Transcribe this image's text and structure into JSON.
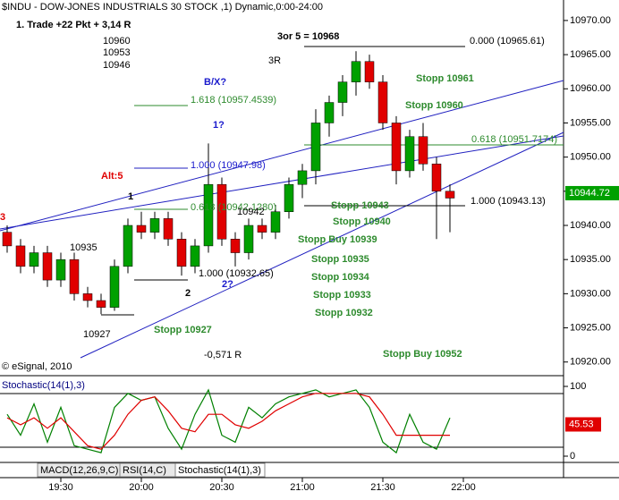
{
  "chart_data": {
    "type": "candlestick",
    "title": "$INDU - DOW-JONES INDUSTRIALS 30 STOCK ,1) Dynamic,0:00-24:00",
    "x": [
      "19:10",
      "19:15",
      "19:20",
      "19:25",
      "19:30",
      "19:35",
      "19:40",
      "19:45",
      "19:50",
      "19:55",
      "20:00",
      "20:05",
      "20:10",
      "20:15",
      "20:20",
      "20:25",
      "20:30",
      "20:35",
      "20:40",
      "20:45",
      "20:50",
      "20:55",
      "21:00",
      "21:05",
      "21:10",
      "21:15",
      "21:20",
      "21:25",
      "21:30",
      "21:35",
      "21:40",
      "21:45",
      "21:50",
      "21:55"
    ],
    "open": [
      10939,
      10937,
      10934,
      10936,
      10932,
      10935,
      10930,
      10929,
      10928,
      10934,
      10940,
      10939,
      10941,
      10938,
      10934,
      10937,
      10946,
      10938,
      10936,
      10940,
      10939,
      10942,
      10946,
      10948,
      10955,
      10958,
      10961,
      10964,
      10961,
      10955,
      10948,
      10953,
      10949,
      10945
    ],
    "high": [
      10940,
      10938,
      10937,
      10937,
      10936,
      10936,
      10931,
      10930,
      10935,
      10941,
      10942,
      10942,
      10942,
      10939,
      10938,
      10952,
      10947,
      10939,
      10941,
      10941,
      10943,
      10947,
      10949,
      10957,
      10959,
      10962,
      10965.5,
      10965,
      10962,
      10956,
      10954,
      10955,
      10950,
      10946
    ],
    "low": [
      10936,
      10933,
      10933,
      10931,
      10931,
      10929,
      10928,
      10927,
      10927.5,
      10933,
      10938,
      10938,
      10937,
      10932.65,
      10933,
      10936,
      10937,
      10934,
      10935,
      10938,
      10938,
      10941,
      10944,
      10946,
      10953,
      10956,
      10959,
      10960,
      10954,
      10946,
      10947,
      10948,
      10938,
      10939
    ],
    "close": [
      10937,
      10934,
      10936,
      10932,
      10935,
      10930,
      10929,
      10928,
      10934,
      10940,
      10939,
      10941,
      10938,
      10934,
      10937,
      10946,
      10938,
      10936,
      10940,
      10939,
      10942,
      10946,
      10948,
      10955,
      10958,
      10961,
      10964,
      10961,
      10955,
      10948,
      10953,
      10949,
      10945,
      10944
    ],
    "up_color": "#00a000",
    "down_color": "#e00000",
    "wick_color": "#000000",
    "ylim": [
      10918,
      10973
    ],
    "yticks": [
      {
        "value": 10920,
        "label": "10920.00"
      },
      {
        "value": 10925,
        "label": "10925.00"
      },
      {
        "value": 10930,
        "label": "10930.00"
      },
      {
        "value": 10935,
        "label": "10935.00"
      },
      {
        "value": 10940,
        "label": "10940.00"
      },
      {
        "value": 10945,
        "label": "10945.00"
      },
      {
        "value": 10950,
        "label": "10950.00"
      },
      {
        "value": 10955,
        "label": "10955.00"
      },
      {
        "value": 10960,
        "label": "10960.00"
      },
      {
        "value": 10965,
        "label": "10965.00"
      },
      {
        "value": 10970,
        "label": "10970.00"
      }
    ],
    "last_price": 10944.72,
    "xticks": [
      "19:30",
      "20:00",
      "20:30",
      "21:00",
      "21:30",
      "22:00"
    ],
    "copyright": "© eSignal, 2010",
    "annotations": [
      {
        "text": "1. Trade +22 Pkt + 3,14 R",
        "color": "#000000"
      },
      {
        "text": "10960",
        "color": "#000000"
      },
      {
        "text": "10953",
        "color": "#000000"
      },
      {
        "text": "10946",
        "color": "#000000"
      },
      {
        "text": "3or 5 = 10968",
        "color": "#000000"
      },
      {
        "text": "0.000 (10965.61)",
        "color": "#000000"
      },
      {
        "text": "3R",
        "color": "#000000"
      },
      {
        "text": "B/X?",
        "color": "#1a1acc"
      },
      {
        "text": "1.618 (10957.4539)",
        "color": "#2e8b2e"
      },
      {
        "text": "Stopp 10961",
        "color": "#2e8b2e"
      },
      {
        "text": "Stopp 10960",
        "color": "#2e8b2e"
      },
      {
        "text": "1?",
        "color": "#1a1acc"
      },
      {
        "text": "0.618 (10951.7174)",
        "color": "#2e8b2e"
      },
      {
        "text": "1.000 (10947.98)",
        "color": "#1a1acc"
      },
      {
        "text": "Alt:5",
        "color": "#e00000"
      },
      {
        "text": "1",
        "color": "#000000"
      },
      {
        "text": "0.618 (10942.1280)",
        "color": "#2e8b2e"
      },
      {
        "text": "Stopp 10943",
        "color": "#2e8b2e"
      },
      {
        "text": "1.000 (10943.13)",
        "color": "#000000"
      },
      {
        "text": "10942",
        "color": "#000000"
      },
      {
        "text": "3",
        "color": "#e00000"
      },
      {
        "text": "Stopp 10940",
        "color": "#2e8b2e"
      },
      {
        "text": "Stopp Buy 10939",
        "color": "#2e8b2e"
      },
      {
        "text": "10935",
        "color": "#000000"
      },
      {
        "text": "Stopp 10935",
        "color": "#2e8b2e"
      },
      {
        "text": "1.000 (10932.65)",
        "color": "#000000"
      },
      {
        "text": "Stopp 10934",
        "color": "#2e8b2e"
      },
      {
        "text": "2",
        "color": "#000000"
      },
      {
        "text": "2?",
        "color": "#1a1acc"
      },
      {
        "text": "Stopp 10933",
        "color": "#2e8b2e"
      },
      {
        "text": "Stopp 10932",
        "color": "#2e8b2e"
      },
      {
        "text": "10927",
        "color": "#000000"
      },
      {
        "text": "Stopp 10927",
        "color": "#2e8b2e"
      },
      {
        "text": "Stopp Buy 10952",
        "color": "#2e8b2e"
      },
      {
        "text": "-0,571 R",
        "color": "#000000"
      }
    ],
    "stochastic": {
      "title": "Stochastic(14(1),3)",
      "ylim": [
        0,
        100
      ],
      "yticks": [
        100,
        0
      ],
      "last_value": 45.53,
      "series": [
        {
          "color": "#008000",
          "values": [
            60,
            30,
            75,
            20,
            70,
            15,
            10,
            5,
            70,
            90,
            80,
            85,
            40,
            10,
            60,
            95,
            30,
            20,
            70,
            55,
            75,
            85,
            90,
            95,
            85,
            90,
            95,
            70,
            20,
            5,
            60,
            20,
            10,
            55
          ]
        },
        {
          "color": "#e00000",
          "values": [
            55,
            45,
            55,
            40,
            55,
            35,
            15,
            10,
            30,
            60,
            80,
            85,
            65,
            40,
            35,
            60,
            60,
            45,
            40,
            50,
            65,
            75,
            85,
            90,
            90,
            90,
            90,
            85,
            60,
            30,
            30,
            30,
            30,
            30
          ]
        }
      ]
    },
    "tabs": [
      "MACD(12,26,9,C)",
      "RSI(14,C)",
      "Stochastic(14(1),3)"
    ]
  }
}
